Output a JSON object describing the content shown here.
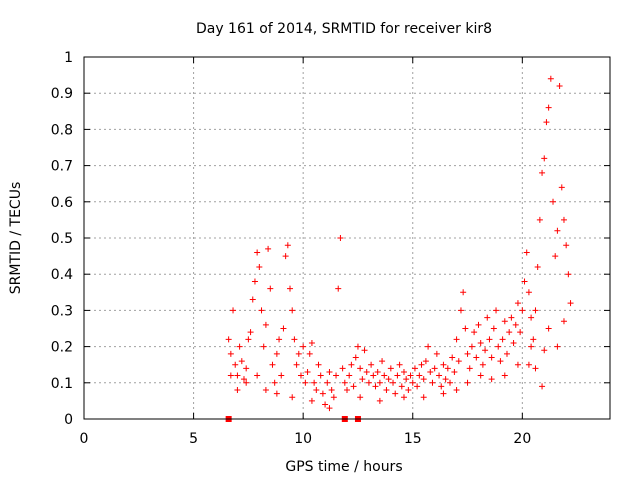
{
  "chart_data": {
    "type": "scatter",
    "title": "Day 161 of 2014, SRMTID for receiver kir8",
    "xlabel": "GPS time / hours",
    "ylabel": "SRMTID / TECUs",
    "xlim": [
      0,
      24
    ],
    "ylim": [
      0,
      1
    ],
    "xticks": [
      0,
      5,
      10,
      15,
      20
    ],
    "yticks": [
      0,
      0.1,
      0.2,
      0.3,
      0.4,
      0.5,
      0.6,
      0.7,
      0.8,
      0.9,
      1
    ],
    "xtick_labels": [
      "0",
      "5",
      "10",
      "15",
      "20"
    ],
    "ytick_labels": [
      "0",
      "0.1",
      "0.2",
      "0.3",
      "0.4",
      "0.5",
      "0.6",
      "0.7",
      "0.8",
      "0.9",
      "1"
    ],
    "grid": true,
    "marker": "+",
    "color": "#ff0000",
    "series": [
      {
        "name": "SRMTID",
        "points": [
          [
            6.6,
            0.22
          ],
          [
            6.7,
            0.18
          ],
          [
            6.8,
            0.3
          ],
          [
            6.9,
            0.15
          ],
          [
            7.0,
            0.12
          ],
          [
            7.1,
            0.2
          ],
          [
            7.2,
            0.16
          ],
          [
            7.3,
            0.11
          ],
          [
            7.4,
            0.14
          ],
          [
            7.5,
            0.22
          ],
          [
            7.6,
            0.24
          ],
          [
            7.7,
            0.33
          ],
          [
            7.8,
            0.38
          ],
          [
            7.9,
            0.46
          ],
          [
            8.0,
            0.42
          ],
          [
            8.1,
            0.3
          ],
          [
            8.2,
            0.2
          ],
          [
            8.3,
            0.26
          ],
          [
            8.4,
            0.47
          ],
          [
            8.5,
            0.36
          ],
          [
            8.6,
            0.15
          ],
          [
            8.7,
            0.1
          ],
          [
            8.8,
            0.18
          ],
          [
            8.9,
            0.22
          ],
          [
            9.0,
            0.12
          ],
          [
            9.1,
            0.25
          ],
          [
            9.2,
            0.45
          ],
          [
            9.3,
            0.48
          ],
          [
            9.4,
            0.36
          ],
          [
            9.5,
            0.3
          ],
          [
            9.6,
            0.22
          ],
          [
            9.7,
            0.15
          ],
          [
            9.8,
            0.18
          ],
          [
            9.9,
            0.12
          ],
          [
            10.0,
            0.2
          ],
          [
            10.1,
            0.1
          ],
          [
            10.2,
            0.13
          ],
          [
            10.3,
            0.18
          ],
          [
            10.4,
            0.21
          ],
          [
            10.5,
            0.1
          ],
          [
            10.6,
            0.08
          ],
          [
            10.7,
            0.15
          ],
          [
            10.8,
            0.12
          ],
          [
            10.9,
            0.07
          ],
          [
            11.0,
            0.04
          ],
          [
            11.1,
            0.1
          ],
          [
            11.2,
            0.13
          ],
          [
            11.3,
            0.08
          ],
          [
            11.4,
            0.06
          ],
          [
            11.5,
            0.12
          ],
          [
            11.6,
            0.36
          ],
          [
            11.7,
            0.5
          ],
          [
            11.8,
            0.14
          ],
          [
            11.9,
            0.1
          ],
          [
            12.0,
            0.08
          ],
          [
            12.1,
            0.12
          ],
          [
            12.2,
            0.15
          ],
          [
            12.3,
            0.09
          ],
          [
            12.4,
            0.17
          ],
          [
            12.5,
            0.2
          ],
          [
            12.6,
            0.14
          ],
          [
            12.7,
            0.11
          ],
          [
            12.8,
            0.19
          ],
          [
            12.9,
            0.13
          ],
          [
            13.0,
            0.1
          ],
          [
            13.1,
            0.15
          ],
          [
            13.2,
            0.12
          ],
          [
            13.3,
            0.09
          ],
          [
            13.4,
            0.13
          ],
          [
            13.5,
            0.1
          ],
          [
            13.6,
            0.16
          ],
          [
            13.7,
            0.12
          ],
          [
            13.8,
            0.08
          ],
          [
            13.9,
            0.11
          ],
          [
            14.0,
            0.14
          ],
          [
            14.1,
            0.1
          ],
          [
            14.2,
            0.07
          ],
          [
            14.3,
            0.12
          ],
          [
            14.4,
            0.15
          ],
          [
            14.5,
            0.09
          ],
          [
            14.6,
            0.13
          ],
          [
            14.7,
            0.11
          ],
          [
            14.8,
            0.08
          ],
          [
            14.9,
            0.12
          ],
          [
            15.0,
            0.1
          ],
          [
            15.1,
            0.14
          ],
          [
            15.2,
            0.09
          ],
          [
            15.3,
            0.12
          ],
          [
            15.4,
            0.15
          ],
          [
            15.5,
            0.11
          ],
          [
            15.6,
            0.16
          ],
          [
            15.7,
            0.2
          ],
          [
            15.8,
            0.13
          ],
          [
            15.9,
            0.1
          ],
          [
            16.0,
            0.14
          ],
          [
            16.1,
            0.18
          ],
          [
            16.2,
            0.12
          ],
          [
            16.3,
            0.09
          ],
          [
            16.4,
            0.15
          ],
          [
            16.5,
            0.11
          ],
          [
            16.6,
            0.14
          ],
          [
            16.7,
            0.1
          ],
          [
            16.8,
            0.17
          ],
          [
            16.9,
            0.13
          ],
          [
            17.0,
            0.22
          ],
          [
            17.1,
            0.16
          ],
          [
            17.2,
            0.3
          ],
          [
            17.3,
            0.35
          ],
          [
            17.4,
            0.25
          ],
          [
            17.5,
            0.18
          ],
          [
            17.6,
            0.14
          ],
          [
            17.7,
            0.2
          ],
          [
            17.8,
            0.24
          ],
          [
            17.9,
            0.17
          ],
          [
            18.0,
            0.26
          ],
          [
            18.1,
            0.21
          ],
          [
            18.2,
            0.15
          ],
          [
            18.3,
            0.19
          ],
          [
            18.4,
            0.28
          ],
          [
            18.5,
            0.22
          ],
          [
            18.6,
            0.17
          ],
          [
            18.7,
            0.25
          ],
          [
            18.8,
            0.3
          ],
          [
            18.9,
            0.2
          ],
          [
            19.0,
            0.16
          ],
          [
            19.1,
            0.22
          ],
          [
            19.2,
            0.27
          ],
          [
            19.3,
            0.18
          ],
          [
            19.4,
            0.24
          ],
          [
            19.5,
            0.28
          ],
          [
            19.6,
            0.21
          ],
          [
            19.7,
            0.26
          ],
          [
            19.8,
            0.32
          ],
          [
            19.9,
            0.24
          ],
          [
            20.0,
            0.3
          ],
          [
            20.1,
            0.38
          ],
          [
            20.2,
            0.46
          ],
          [
            20.3,
            0.35
          ],
          [
            20.4,
            0.28
          ],
          [
            20.5,
            0.22
          ],
          [
            20.6,
            0.3
          ],
          [
            20.7,
            0.42
          ],
          [
            20.8,
            0.55
          ],
          [
            20.9,
            0.68
          ],
          [
            21.0,
            0.72
          ],
          [
            21.1,
            0.82
          ],
          [
            21.2,
            0.86
          ],
          [
            21.3,
            0.94
          ],
          [
            21.4,
            0.6
          ],
          [
            21.5,
            0.45
          ],
          [
            21.6,
            0.52
          ],
          [
            21.7,
            0.92
          ],
          [
            21.8,
            0.64
          ],
          [
            21.9,
            0.55
          ],
          [
            22.0,
            0.48
          ],
          [
            22.1,
            0.4
          ],
          [
            22.2,
            0.32
          ],
          [
            20.4,
            0.2
          ],
          [
            20.6,
            0.14
          ],
          [
            20.9,
            0.09
          ],
          [
            21.0,
            0.19
          ],
          [
            21.2,
            0.25
          ],
          [
            21.6,
            0.2
          ],
          [
            21.9,
            0.27
          ],
          [
            6.7,
            0.12
          ],
          [
            7.0,
            0.08
          ],
          [
            7.4,
            0.1
          ],
          [
            7.9,
            0.12
          ],
          [
            8.3,
            0.08
          ],
          [
            8.8,
            0.07
          ],
          [
            9.5,
            0.06
          ],
          [
            10.4,
            0.05
          ],
          [
            11.2,
            0.03
          ],
          [
            12.6,
            0.06
          ],
          [
            13.5,
            0.05
          ],
          [
            14.6,
            0.06
          ],
          [
            15.5,
            0.06
          ],
          [
            16.4,
            0.07
          ],
          [
            17.0,
            0.08
          ],
          [
            17.5,
            0.1
          ],
          [
            18.1,
            0.12
          ],
          [
            18.6,
            0.11
          ],
          [
            19.2,
            0.12
          ],
          [
            19.8,
            0.15
          ],
          [
            20.3,
            0.15
          ]
        ]
      }
    ],
    "outliers_on_axis": [
      {
        "x": 6.6,
        "y": 0
      },
      {
        "x": 11.9,
        "y": 0
      },
      {
        "x": 12.5,
        "y": 0
      }
    ]
  }
}
